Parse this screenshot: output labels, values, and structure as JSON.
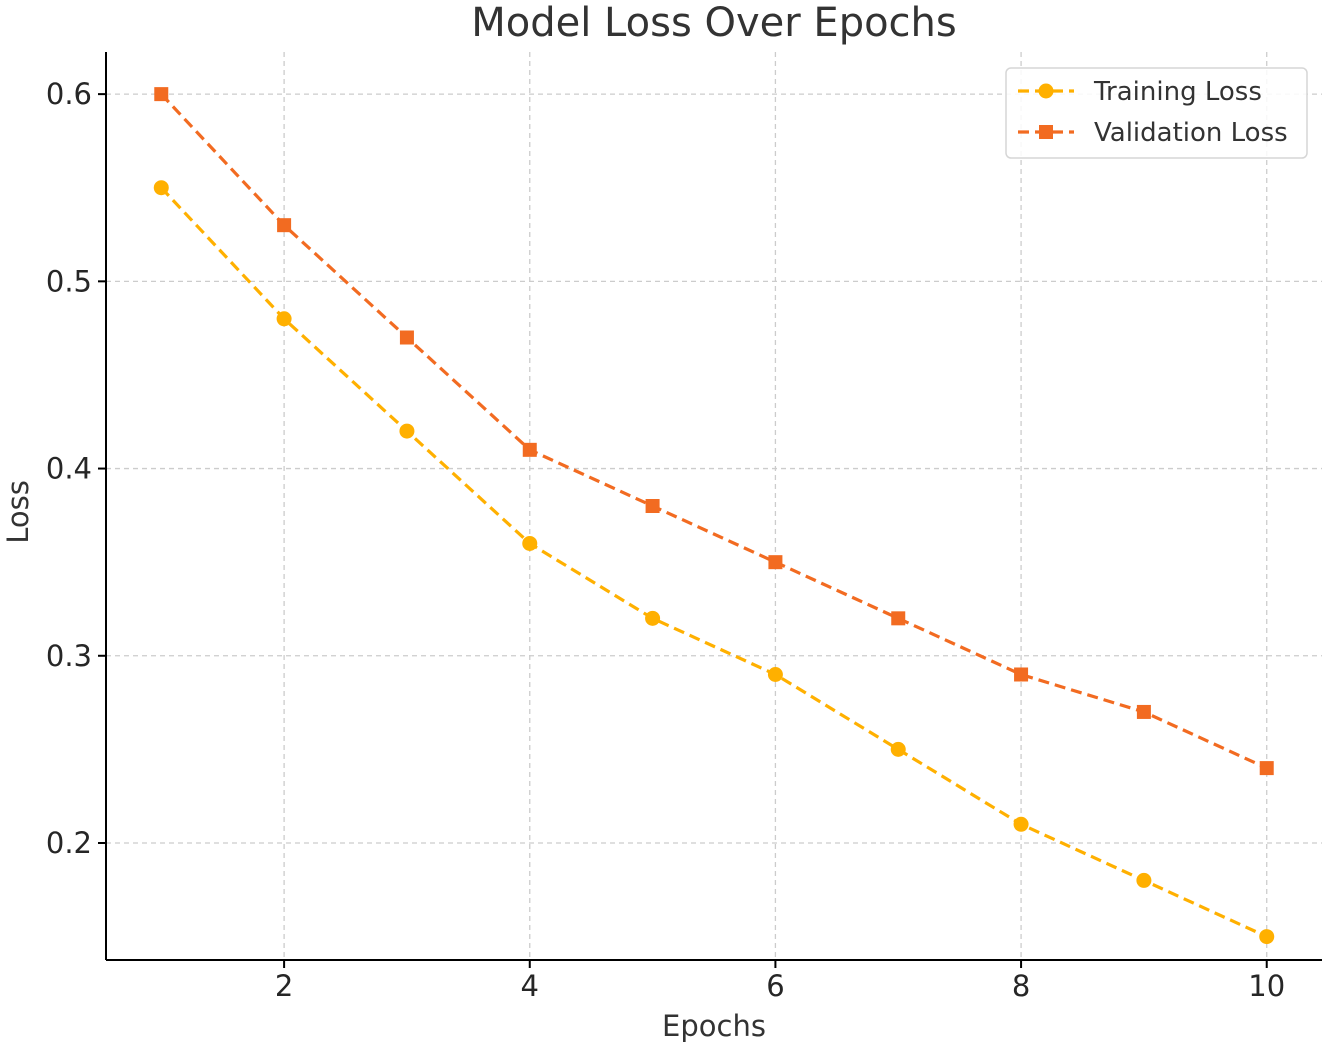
{
  "chart_data": {
    "type": "line",
    "title": "Model Loss Over Epochs",
    "xlabel": "Epochs",
    "ylabel": "Loss",
    "x": [
      1,
      2,
      3,
      4,
      5,
      6,
      7,
      8,
      9,
      10
    ],
    "xlim": [
      0.55,
      10.45
    ],
    "ylim": [
      0.1375,
      0.6225
    ],
    "xticks": [
      2,
      4,
      6,
      8,
      10
    ],
    "xtick_labels": [
      "2",
      "4",
      "6",
      "8",
      "10"
    ],
    "yticks": [
      0.2,
      0.3,
      0.4,
      0.5,
      0.6
    ],
    "ytick_labels": [
      "0.2",
      "0.3",
      "0.4",
      "0.5",
      "0.6"
    ],
    "grid": true,
    "legend_position": "top-right",
    "series": [
      {
        "name": "Training Loss",
        "values": [
          0.55,
          0.48,
          0.42,
          0.36,
          0.32,
          0.29,
          0.25,
          0.21,
          0.18,
          0.15
        ],
        "color": "#FFB000",
        "marker": "circle",
        "linestyle": "dashed"
      },
      {
        "name": "Validation Loss",
        "values": [
          0.6,
          0.53,
          0.47,
          0.41,
          0.38,
          0.35,
          0.32,
          0.29,
          0.27,
          0.24
        ],
        "color": "#F26B21",
        "marker": "square",
        "linestyle": "dashed"
      }
    ]
  }
}
